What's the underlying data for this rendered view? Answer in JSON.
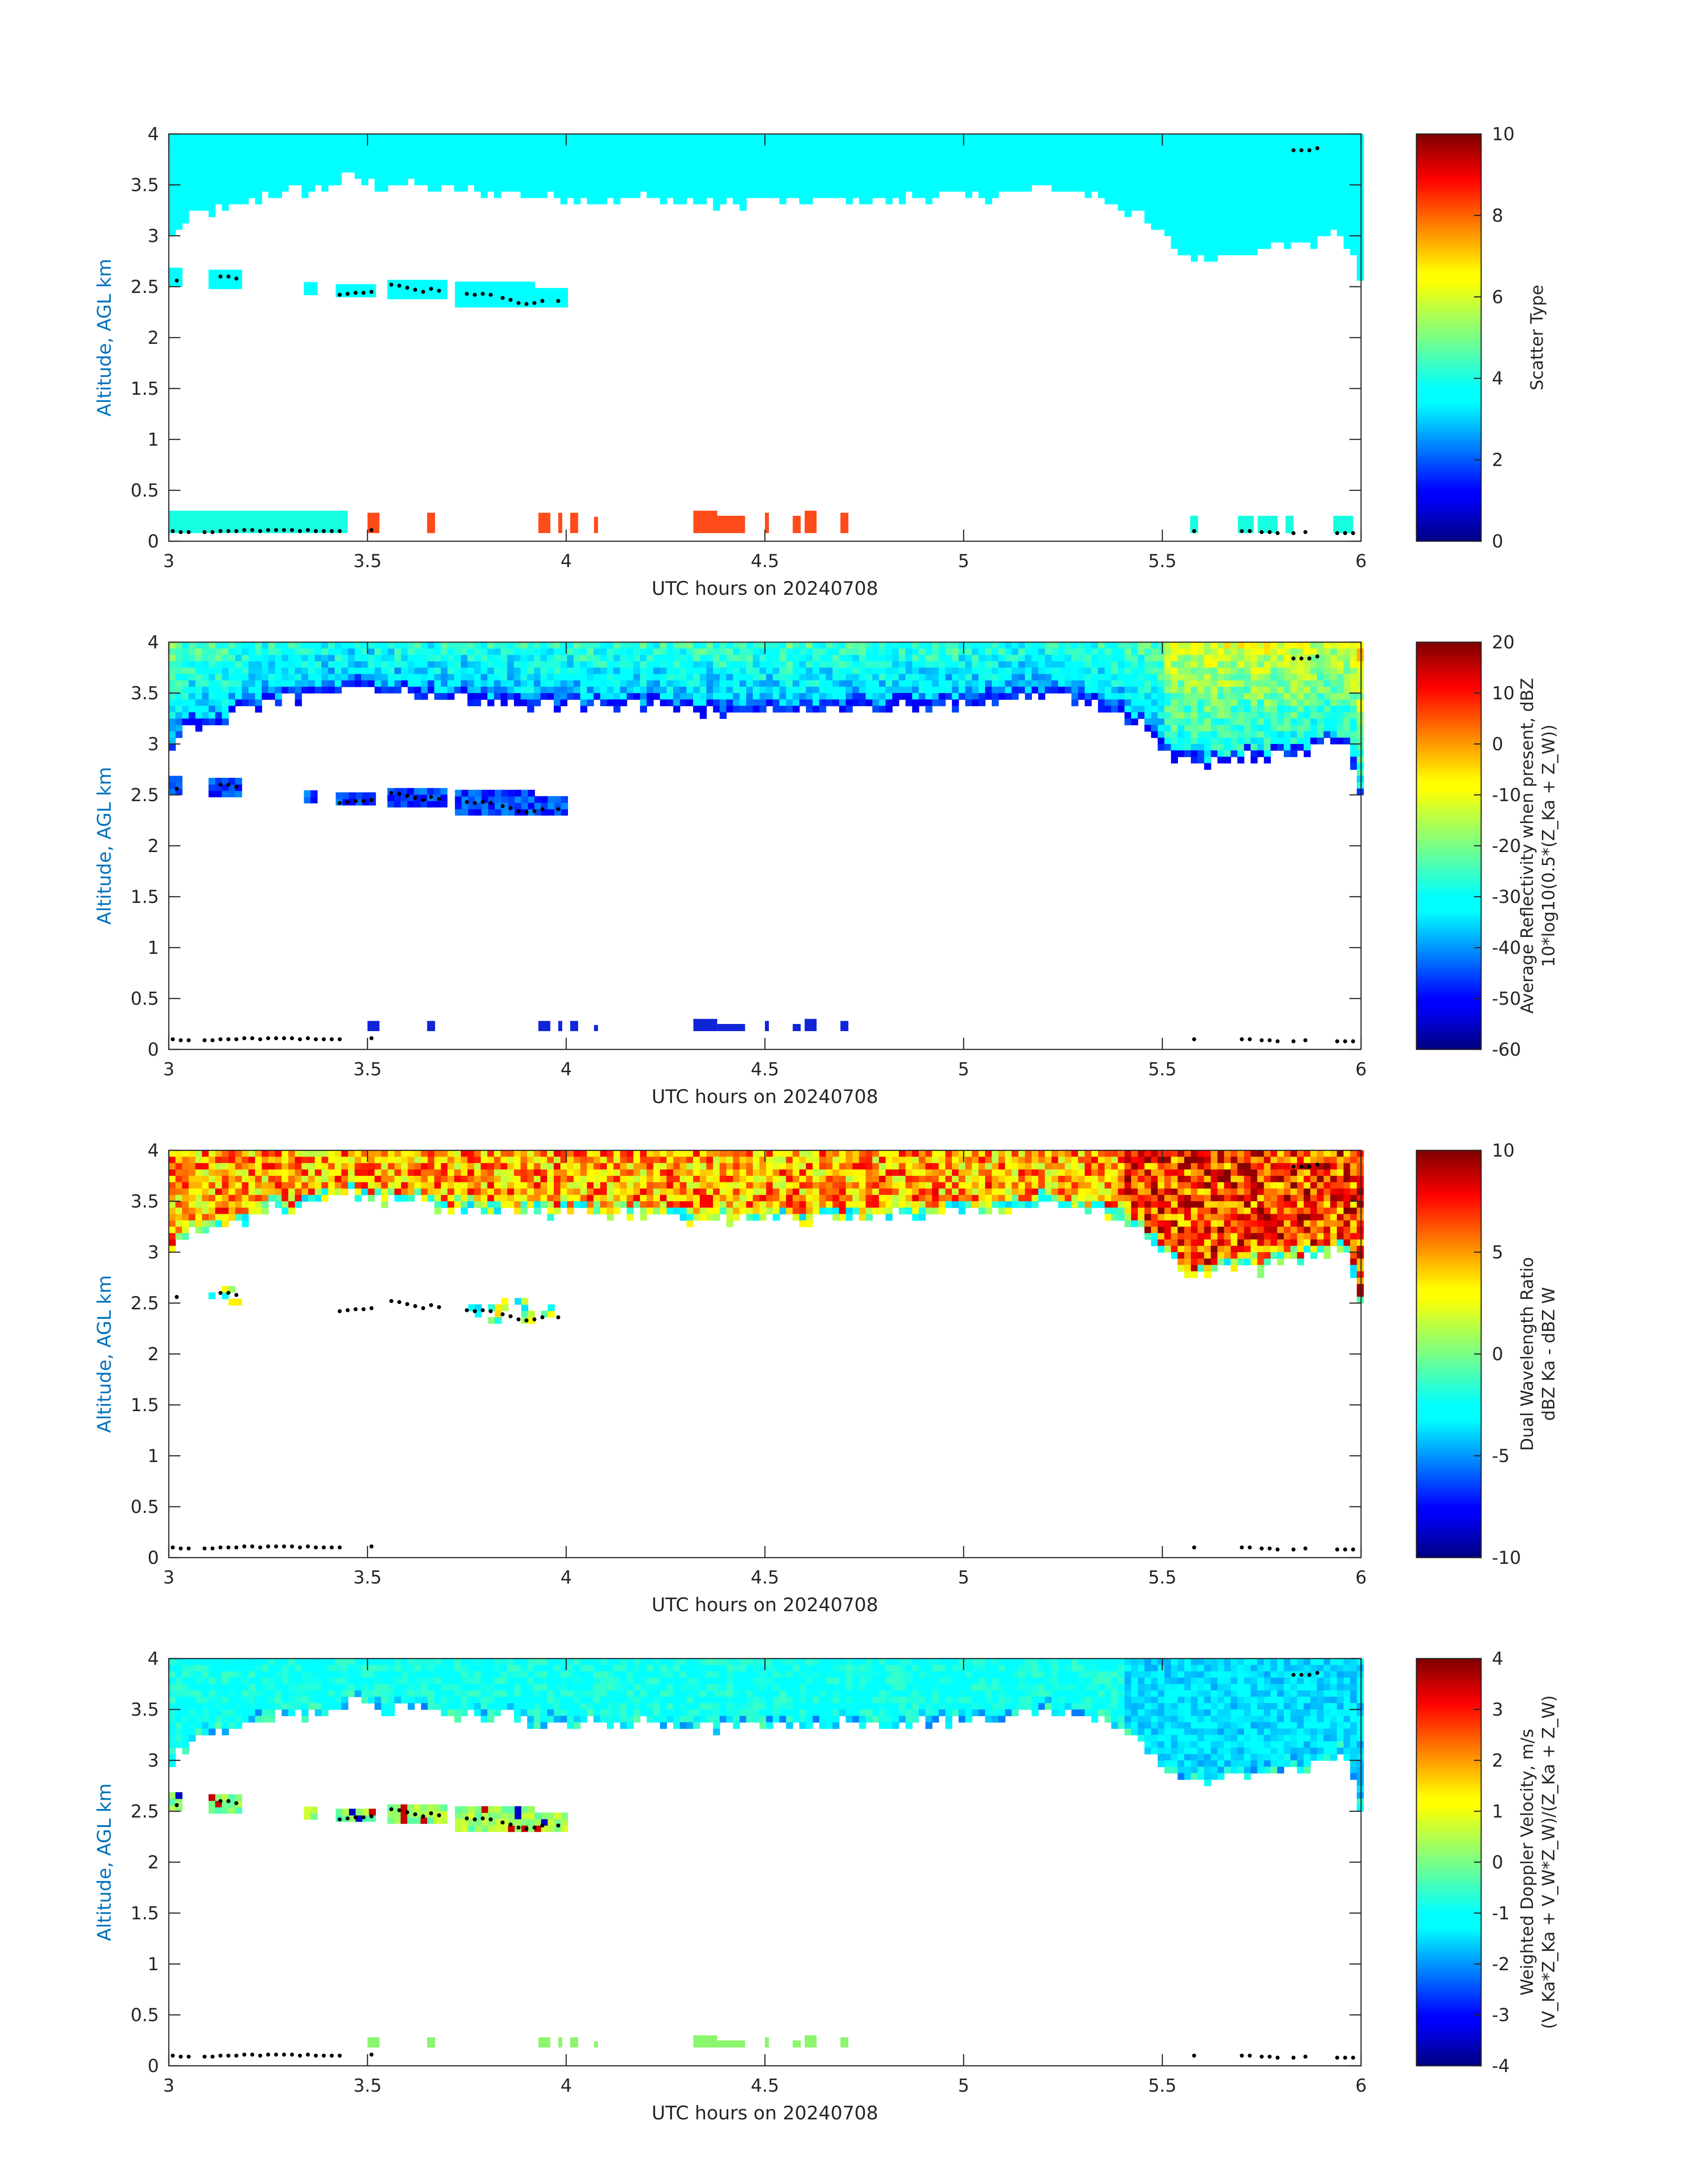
{
  "chart_data": [
    {
      "type": "heatmap",
      "title": "",
      "xlabel": "UTC hours on 20240708",
      "ylabel": "Altitude, AGL km",
      "xlim": [
        3,
        6
      ],
      "ylim": [
        0,
        4
      ],
      "xticks": [
        "3",
        "3.5",
        "4",
        "4.5",
        "5",
        "5.5",
        "6"
      ],
      "yticks": [
        "0",
        "0.5",
        "1",
        "1.5",
        "2",
        "2.5",
        "3",
        "3.5",
        "4"
      ],
      "colorbar": {
        "label_lines": [
          "Scatter Type"
        ],
        "clim": [
          0,
          10
        ],
        "ticks": [
          "0",
          "2",
          "4",
          "6",
          "8",
          "10"
        ],
        "colormap": "jet"
      },
      "field": "scatter-type"
    },
    {
      "type": "heatmap",
      "title": "",
      "xlabel": "UTC hours on 20240708",
      "ylabel": "Altitude, AGL km",
      "xlim": [
        3,
        6
      ],
      "ylim": [
        0,
        4
      ],
      "xticks": [
        "3",
        "3.5",
        "4",
        "4.5",
        "5",
        "5.5",
        "6"
      ],
      "yticks": [
        "0",
        "0.5",
        "1",
        "1.5",
        "2",
        "2.5",
        "3",
        "3.5",
        "4"
      ],
      "colorbar": {
        "label_lines": [
          "Average Reflectivity when present, dBZ",
          "10*log10(0.5*(Z_Ka + Z_W))"
        ],
        "clim": [
          -60,
          20
        ],
        "ticks": [
          "-60",
          "-50",
          "-40",
          "-30",
          "-20",
          "-10",
          "0",
          "10",
          "20"
        ],
        "colormap": "jet"
      },
      "field": "reflectivity"
    },
    {
      "type": "heatmap",
      "title": "",
      "xlabel": "UTC hours on 20240708",
      "ylabel": "Altitude, AGL km",
      "xlim": [
        3,
        6
      ],
      "ylim": [
        0,
        4
      ],
      "xticks": [
        "3",
        "3.5",
        "4",
        "4.5",
        "5",
        "5.5",
        "6"
      ],
      "yticks": [
        "0",
        "0.5",
        "1",
        "1.5",
        "2",
        "2.5",
        "3",
        "3.5",
        "4"
      ],
      "colorbar": {
        "label_lines": [
          "Dual Wavelength Ratio",
          "dBZ Ka - dBZ W"
        ],
        "clim": [
          -10,
          10
        ],
        "ticks": [
          "-10",
          "-5",
          "0",
          "5",
          "10"
        ],
        "colormap": "jet"
      },
      "field": "dwr"
    },
    {
      "type": "heatmap",
      "title": "",
      "xlabel": "UTC hours on 20240708",
      "ylabel": "Altitude, AGL km",
      "xlim": [
        3,
        6
      ],
      "ylim": [
        0,
        4
      ],
      "xticks": [
        "3",
        "3.5",
        "4",
        "4.5",
        "5",
        "5.5",
        "6"
      ],
      "yticks": [
        "0",
        "0.5",
        "1",
        "1.5",
        "2",
        "2.5",
        "3",
        "3.5",
        "4"
      ],
      "colorbar": {
        "label_lines": [
          "Weighted Doppler Velocity, m/s",
          "(V_Ka*Z_Ka + V_W*Z_W)/(Z_Ka + Z_W)"
        ],
        "clim": [
          -4,
          4
        ],
        "ticks": [
          "-4",
          "-3",
          "-2",
          "-1",
          "0",
          "1",
          "2",
          "3",
          "4"
        ],
        "colormap": "jet"
      },
      "field": "velocity"
    }
  ],
  "shared": {
    "upper_cloud_base_km": [
      [
        3.0,
        2.9
      ],
      [
        3.03,
        3.05
      ],
      [
        3.06,
        3.15
      ],
      [
        3.1,
        3.2
      ],
      [
        3.15,
        3.22
      ],
      [
        3.2,
        3.3
      ],
      [
        3.25,
        3.38
      ],
      [
        3.3,
        3.4
      ],
      [
        3.35,
        3.42
      ],
      [
        3.4,
        3.45
      ],
      [
        3.45,
        3.55
      ],
      [
        3.5,
        3.5
      ],
      [
        3.55,
        3.45
      ],
      [
        3.6,
        3.5
      ],
      [
        3.65,
        3.45
      ],
      [
        3.7,
        3.4
      ],
      [
        3.75,
        3.42
      ],
      [
        3.8,
        3.38
      ],
      [
        3.85,
        3.4
      ],
      [
        3.9,
        3.35
      ],
      [
        3.95,
        3.35
      ],
      [
        4.0,
        3.35
      ],
      [
        4.1,
        3.32
      ],
      [
        4.2,
        3.35
      ],
      [
        4.3,
        3.3
      ],
      [
        4.4,
        3.28
      ],
      [
        4.5,
        3.33
      ],
      [
        4.6,
        3.3
      ],
      [
        4.7,
        3.32
      ],
      [
        4.8,
        3.32
      ],
      [
        4.9,
        3.35
      ],
      [
        5.0,
        3.35
      ],
      [
        5.1,
        3.38
      ],
      [
        5.2,
        3.45
      ],
      [
        5.3,
        3.4
      ],
      [
        5.35,
        3.35
      ],
      [
        5.4,
        3.25
      ],
      [
        5.45,
        3.15
      ],
      [
        5.5,
        2.95
      ],
      [
        5.55,
        2.8
      ],
      [
        5.6,
        2.75
      ],
      [
        5.65,
        2.8
      ],
      [
        5.7,
        2.85
      ],
      [
        5.75,
        2.8
      ],
      [
        5.8,
        2.9
      ],
      [
        5.85,
        2.88
      ],
      [
        5.9,
        2.95
      ],
      [
        5.95,
        3.0
      ],
      [
        5.98,
        2.8
      ],
      [
        6.0,
        2.45
      ]
    ],
    "midlevel_layer_segments_km": [
      {
        "x": [
          3.0,
          3.03
        ],
        "base": 2.5,
        "top": 2.65
      },
      {
        "x": [
          3.1,
          3.18
        ],
        "base": 2.48,
        "top": 2.66
      },
      {
        "x": [
          3.34,
          3.36
        ],
        "base": 2.42,
        "top": 2.52
      },
      {
        "x": [
          3.42,
          3.52
        ],
        "base": 2.4,
        "top": 2.52
      },
      {
        "x": [
          3.55,
          3.7
        ],
        "base": 2.38,
        "top": 2.56
      },
      {
        "x": [
          3.72,
          3.92
        ],
        "base": 2.3,
        "top": 2.52
      },
      {
        "x": [
          3.92,
          3.99
        ],
        "base": 2.3,
        "top": 2.46
      }
    ],
    "midlevel_markers_km": [
      [
        3.02,
        2.56
      ],
      [
        3.13,
        2.6
      ],
      [
        3.15,
        2.6
      ],
      [
        3.17,
        2.58
      ],
      [
        3.43,
        2.42
      ],
      [
        3.45,
        2.43
      ],
      [
        3.47,
        2.44
      ],
      [
        3.49,
        2.44
      ],
      [
        3.51,
        2.45
      ],
      [
        3.56,
        2.52
      ],
      [
        3.58,
        2.51
      ],
      [
        3.6,
        2.49
      ],
      [
        3.62,
        2.47
      ],
      [
        3.64,
        2.45
      ],
      [
        3.66,
        2.48
      ],
      [
        3.68,
        2.46
      ],
      [
        3.75,
        2.43
      ],
      [
        3.77,
        2.42
      ],
      [
        3.79,
        2.43
      ],
      [
        3.81,
        2.42
      ],
      [
        3.84,
        2.39
      ],
      [
        3.86,
        2.37
      ],
      [
        3.88,
        2.34
      ],
      [
        3.9,
        2.33
      ],
      [
        3.92,
        2.34
      ],
      [
        3.94,
        2.36
      ],
      [
        3.98,
        2.36
      ]
    ],
    "top_markers_km": [
      [
        5.83,
        3.84
      ],
      [
        5.85,
        3.84
      ],
      [
        5.87,
        3.84
      ],
      [
        5.89,
        3.86
      ]
    ],
    "near_surface_markers_km": [
      [
        3.01,
        0.1
      ],
      [
        3.03,
        0.09
      ],
      [
        3.05,
        0.09
      ],
      [
        3.09,
        0.09
      ],
      [
        3.11,
        0.09
      ],
      [
        3.13,
        0.1
      ],
      [
        3.15,
        0.1
      ],
      [
        3.17,
        0.1
      ],
      [
        3.19,
        0.11
      ],
      [
        3.21,
        0.11
      ],
      [
        3.23,
        0.1
      ],
      [
        3.25,
        0.11
      ],
      [
        3.27,
        0.11
      ],
      [
        3.29,
        0.11
      ],
      [
        3.31,
        0.11
      ],
      [
        3.33,
        0.1
      ],
      [
        3.35,
        0.11
      ],
      [
        3.37,
        0.1
      ],
      [
        3.39,
        0.1
      ],
      [
        3.41,
        0.1
      ],
      [
        3.43,
        0.1
      ],
      [
        3.51,
        0.11
      ],
      [
        5.58,
        0.1
      ],
      [
        5.7,
        0.1
      ],
      [
        5.72,
        0.1
      ],
      [
        5.75,
        0.09
      ],
      [
        5.77,
        0.09
      ],
      [
        5.79,
        0.08
      ],
      [
        5.83,
        0.08
      ],
      [
        5.86,
        0.09
      ],
      [
        5.94,
        0.08
      ],
      [
        5.96,
        0.08
      ],
      [
        5.98,
        0.08
      ]
    ],
    "near_surface_echo_segments_km": [
      {
        "x": [
          3.0,
          3.45
        ],
        "top": 0.3,
        "kind": "cyan"
      },
      {
        "x": [
          3.5,
          3.53
        ],
        "top": 0.28,
        "kind": "mixed"
      },
      {
        "x": [
          3.65,
          3.67
        ],
        "top": 0.28,
        "kind": "orange"
      },
      {
        "x": [
          3.93,
          3.96
        ],
        "top": 0.28,
        "kind": "orange"
      },
      {
        "x": [
          3.98,
          3.99
        ],
        "top": 0.28,
        "kind": "orange"
      },
      {
        "x": [
          4.01,
          4.03
        ],
        "top": 0.28,
        "kind": "orange"
      },
      {
        "x": [
          4.07,
          4.08
        ],
        "top": 0.24,
        "kind": "orange"
      },
      {
        "x": [
          4.32,
          4.38
        ],
        "top": 0.3,
        "kind": "orange"
      },
      {
        "x": [
          4.38,
          4.45
        ],
        "top": 0.25,
        "kind": "orange"
      },
      {
        "x": [
          4.5,
          4.51
        ],
        "top": 0.28,
        "kind": "orange"
      },
      {
        "x": [
          4.57,
          4.59
        ],
        "top": 0.25,
        "kind": "orange"
      },
      {
        "x": [
          4.6,
          4.63
        ],
        "top": 0.3,
        "kind": "orange"
      },
      {
        "x": [
          4.69,
          4.71
        ],
        "top": 0.28,
        "kind": "orange"
      },
      {
        "x": [
          5.57,
          5.59
        ],
        "top": 0.25,
        "kind": "cyan"
      },
      {
        "x": [
          5.69,
          5.73
        ],
        "top": 0.25,
        "kind": "cyan"
      },
      {
        "x": [
          5.74,
          5.79
        ],
        "top": 0.25,
        "kind": "cyan"
      },
      {
        "x": [
          5.81,
          5.83
        ],
        "top": 0.25,
        "kind": "cyan"
      },
      {
        "x": [
          5.93,
          5.98
        ],
        "top": 0.25,
        "kind": "cyan"
      }
    ]
  }
}
